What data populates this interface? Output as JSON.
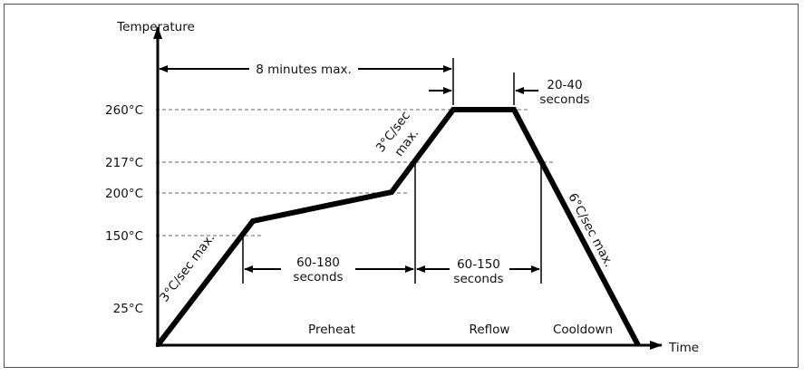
{
  "diagram": {
    "y_axis_label": "Temperature",
    "x_axis_label": "Time",
    "temperature_levels": [
      "260°C",
      "217°C",
      "200°C",
      "150°C",
      "25°C"
    ],
    "dimensions": {
      "total": "8 minutes max.",
      "peak_line1": "20-40",
      "peak_line2": "seconds",
      "preheat_line1": "60-180",
      "preheat_line2": "seconds",
      "reflow_line1": "60-150",
      "reflow_line2": "seconds"
    },
    "slopes": {
      "ramp_up": "3°C/sec max.",
      "ramp_reflow_line1": "3°C/sec",
      "ramp_reflow_line2": "max.",
      "cooldown": "6°C/sec max."
    },
    "phases": [
      "Preheat",
      "Reflow",
      "Cooldown"
    ],
    "colors": {
      "line": "#000000",
      "guide": "#999999",
      "frame": "#555555"
    }
  }
}
